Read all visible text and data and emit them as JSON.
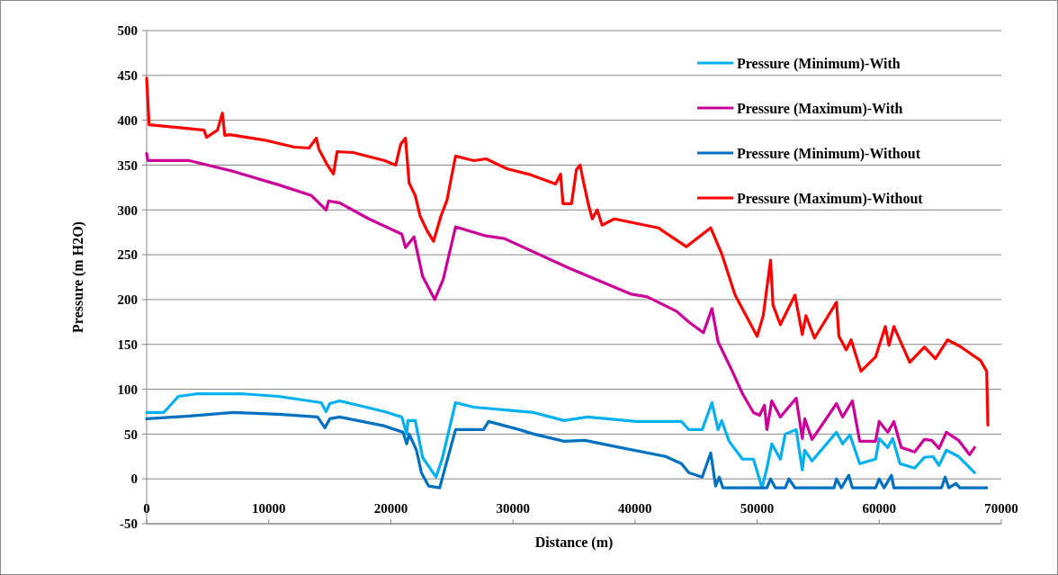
{
  "chart_data": {
    "type": "line",
    "xlabel": "Distance (m)",
    "ylabel": "Pressure (m H2O)",
    "xlim": [
      0,
      70000
    ],
    "xticks": [
      0,
      10000,
      20000,
      30000,
      40000,
      50000,
      60000,
      70000
    ],
    "ylim": [
      -50,
      500
    ],
    "yticks": [
      -50,
      0,
      50,
      100,
      150,
      200,
      250,
      300,
      350,
      400,
      450,
      500
    ],
    "grid": "y",
    "legend": "top right",
    "marker": "none",
    "line_style": "solid",
    "series": [
      {
        "name": "Pressure (Minimum)-With",
        "color": "#00b0f0",
        "x": [
          0,
          1400,
          2600,
          4200,
          7700,
          10800,
          14300,
          14700,
          15000,
          15800,
          19500,
          20900,
          21300,
          21400,
          22000,
          22600,
          23700,
          24200,
          25300,
          26800,
          31700,
          34200,
          36100,
          40100,
          43800,
          44400,
          45500,
          46300,
          46800,
          47100,
          47700,
          48800,
          49700,
          50400,
          50800,
          51200,
          51900,
          52300,
          53200,
          53700,
          53900,
          54500,
          56500,
          57000,
          57600,
          58400,
          59700,
          60000,
          60700,
          61100,
          61700,
          62900,
          63700,
          64400,
          64900,
          65500,
          66500,
          67800
        ],
        "values": [
          74,
          74,
          92,
          95,
          95,
          92,
          85,
          75,
          84,
          87,
          75,
          69,
          50,
          65,
          65,
          24,
          2,
          22,
          85,
          80,
          74,
          65,
          69,
          64,
          64,
          55,
          55,
          85,
          55,
          65,
          42,
          22,
          22,
          -10,
          12,
          39,
          22,
          50,
          55,
          10,
          32,
          20,
          52,
          39,
          49,
          17,
          22,
          45,
          35,
          45,
          17,
          12,
          24,
          25,
          15,
          32,
          25,
          7
        ]
      },
      {
        "name": "Pressure (Maximum)-With",
        "color": "#cc0099",
        "x": [
          0,
          100,
          3500,
          7100,
          10800,
          13500,
          14700,
          14900,
          15800,
          18200,
          20900,
          21200,
          21900,
          22600,
          23600,
          24300,
          25300,
          27800,
          29300,
          34600,
          39700,
          41000,
          43400,
          44400,
          45600,
          46300,
          46800,
          47900,
          48800,
          49700,
          50200,
          50600,
          50800,
          51200,
          51900,
          53200,
          53700,
          53900,
          54500,
          56500,
          57000,
          57800,
          58400,
          59700,
          60000,
          60700,
          61200,
          61800,
          62900,
          63700,
          64300,
          64900,
          65500,
          66500,
          67400,
          67800
        ],
        "values": [
          363,
          355,
          355,
          343,
          328,
          316,
          300,
          310,
          308,
          290,
          273,
          258,
          270,
          226,
          200,
          223,
          281,
          271,
          268,
          235,
          206,
          203,
          187,
          175,
          163,
          190,
          153,
          122,
          95,
          74,
          71,
          82,
          55,
          87,
          69,
          90,
          45,
          67,
          44,
          84,
          69,
          87,
          42,
          42,
          64,
          52,
          64,
          35,
          30,
          44,
          43,
          34,
          52,
          43,
          27,
          35
        ]
      },
      {
        "name": "Pressure (Minimum)-Without",
        "color": "#0070c0",
        "x": [
          0,
          3500,
          7100,
          10800,
          14000,
          14600,
          15000,
          15800,
          19500,
          21000,
          21300,
          21500,
          22100,
          22500,
          23100,
          24000,
          24300,
          25300,
          27600,
          28000,
          30500,
          31700,
          34200,
          35900,
          38800,
          42500,
          43800,
          44400,
          45500,
          46200,
          46600,
          46900,
          47200,
          50800,
          51100,
          51500,
          52300,
          52600,
          53100,
          56300,
          56500,
          56900,
          57500,
          57800,
          59700,
          60000,
          60400,
          61000,
          61200,
          65100,
          65400,
          65700,
          66300,
          66600,
          68800
        ],
        "values": [
          67,
          70,
          74,
          72,
          69,
          57,
          67,
          69,
          59,
          52,
          39,
          50,
          32,
          7,
          -8,
          -10,
          5,
          55,
          55,
          64,
          55,
          50,
          42,
          43,
          35,
          25,
          17,
          7,
          2,
          29,
          -8,
          2,
          -10,
          -10,
          0,
          -10,
          -10,
          0,
          -10,
          -10,
          0,
          -10,
          4,
          -10,
          -10,
          0,
          -10,
          4,
          -10,
          -10,
          2,
          -10,
          -5,
          -10,
          -10
        ]
      },
      {
        "name": "Pressure (Maximum)-Without",
        "color": "#ff0000",
        "x": [
          0,
          200,
          2500,
          4700,
          4900,
          5800,
          6200,
          6400,
          6800,
          9600,
          12100,
          13300,
          13900,
          14100,
          14800,
          15300,
          15600,
          16900,
          19500,
          20400,
          20800,
          21200,
          21500,
          22000,
          22400,
          23000,
          23500,
          24100,
          24600,
          25300,
          26800,
          27800,
          29500,
          31500,
          33500,
          33900,
          34100,
          34800,
          35200,
          35500,
          35800,
          36200,
          36500,
          36900,
          37300,
          38300,
          41900,
          44200,
          46200,
          47100,
          48200,
          50000,
          50500,
          51100,
          51300,
          51900,
          53100,
          53700,
          54000,
          54700,
          56500,
          56700,
          57300,
          57700,
          58500,
          59700,
          60500,
          60800,
          61200,
          62500,
          63700,
          64600,
          65600,
          66600,
          68300,
          68800,
          68900
        ],
        "values": [
          447,
          395,
          392,
          389,
          381,
          389,
          408,
          383,
          384,
          378,
          370,
          369,
          380,
          368,
          350,
          340,
          365,
          364,
          355,
          350,
          373,
          380,
          330,
          316,
          293,
          276,
          265,
          293,
          311,
          360,
          355,
          357,
          346,
          339,
          329,
          340,
          307,
          307,
          345,
          350,
          330,
          305,
          290,
          300,
          283,
          290,
          280,
          259,
          280,
          251,
          205,
          159,
          182,
          244,
          194,
          172,
          205,
          161,
          182,
          157,
          197,
          159,
          144,
          155,
          120,
          136,
          170,
          149,
          170,
          130,
          147,
          134,
          155,
          148,
          132,
          120,
          60
        ]
      }
    ]
  }
}
